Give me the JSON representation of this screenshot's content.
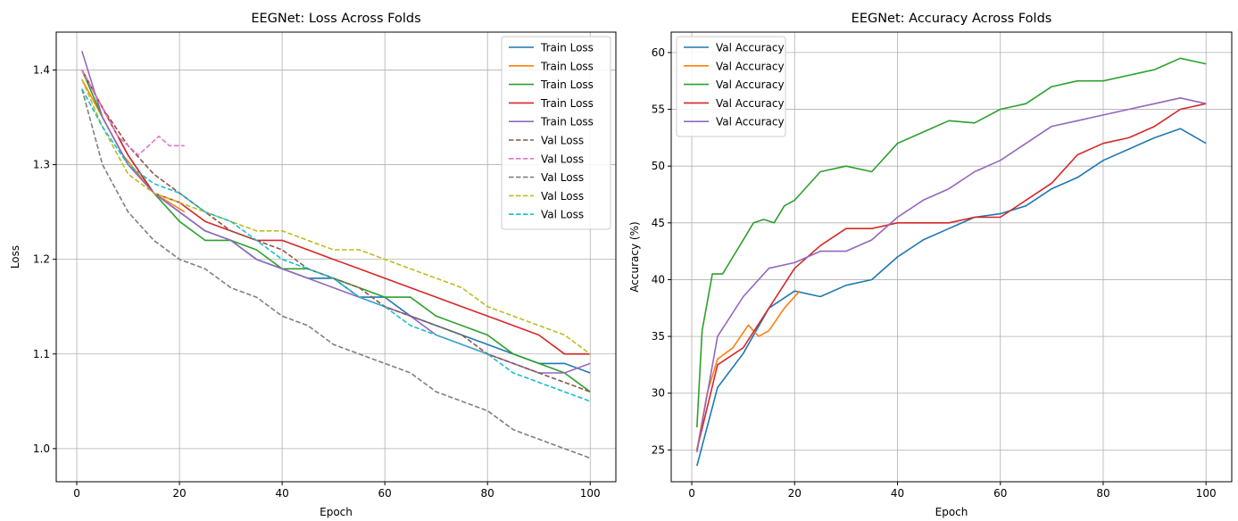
{
  "chart_data": [
    {
      "type": "line",
      "title": "EEGNet: Loss Across Folds",
      "xlabel": "Epoch",
      "ylabel": "Loss",
      "xlim": [
        -4,
        105
      ],
      "ylim": [
        0.965,
        1.44
      ],
      "xticks": [
        0,
        20,
        40,
        60,
        80,
        100
      ],
      "yticks": [
        1.0,
        1.1,
        1.2,
        1.3,
        1.4
      ],
      "ytick_format": 1,
      "grid": true,
      "legend_position": "top-right",
      "series": [
        {
          "name": "Train Loss",
          "color": "#1f77b4",
          "dash": "solid",
          "x": [
            1,
            5,
            10,
            15,
            20,
            25,
            30,
            35,
            40,
            45,
            50,
            55,
            60,
            65,
            70,
            75,
            80,
            85,
            90,
            95,
            100
          ],
          "y": [
            1.4,
            1.36,
            1.31,
            1.27,
            1.25,
            1.23,
            1.22,
            1.2,
            1.19,
            1.18,
            1.18,
            1.16,
            1.16,
            1.14,
            1.13,
            1.12,
            1.11,
            1.1,
            1.09,
            1.09,
            1.08
          ]
        },
        {
          "name": "Train Loss",
          "color": "#ff7f0e",
          "dash": "solid",
          "x": [
            1,
            3,
            6,
            9,
            12,
            15,
            18,
            21
          ],
          "y": [
            1.39,
            1.37,
            1.34,
            1.31,
            1.29,
            1.27,
            1.26,
            1.25
          ]
        },
        {
          "name": "Train Loss",
          "color": "#2ca02c",
          "dash": "solid",
          "x": [
            1,
            5,
            10,
            15,
            20,
            25,
            30,
            35,
            40,
            45,
            50,
            55,
            60,
            65,
            70,
            75,
            80,
            85,
            90,
            95,
            100
          ],
          "y": [
            1.4,
            1.35,
            1.3,
            1.27,
            1.24,
            1.22,
            1.22,
            1.21,
            1.19,
            1.19,
            1.18,
            1.17,
            1.16,
            1.16,
            1.14,
            1.13,
            1.12,
            1.1,
            1.09,
            1.08,
            1.06
          ]
        },
        {
          "name": "Train Loss",
          "color": "#d62728",
          "dash": "solid",
          "x": [
            1,
            5,
            10,
            15,
            20,
            25,
            30,
            35,
            40,
            45,
            50,
            55,
            60,
            65,
            70,
            75,
            80,
            85,
            90,
            95,
            100
          ],
          "y": [
            1.4,
            1.36,
            1.31,
            1.27,
            1.26,
            1.24,
            1.23,
            1.22,
            1.22,
            1.21,
            1.2,
            1.19,
            1.18,
            1.17,
            1.16,
            1.15,
            1.14,
            1.13,
            1.12,
            1.1,
            1.1
          ]
        },
        {
          "name": "Train Loss",
          "color": "#9467bd",
          "dash": "solid",
          "x": [
            1,
            5,
            10,
            15,
            20,
            25,
            30,
            35,
            40,
            45,
            50,
            55,
            60,
            65,
            70,
            75,
            80,
            85,
            90,
            95,
            100
          ],
          "y": [
            1.42,
            1.35,
            1.3,
            1.27,
            1.25,
            1.23,
            1.22,
            1.2,
            1.19,
            1.18,
            1.17,
            1.16,
            1.15,
            1.14,
            1.12,
            1.11,
            1.1,
            1.09,
            1.08,
            1.08,
            1.09
          ]
        },
        {
          "name": "Val Loss",
          "color": "#8c564b",
          "dash": "dashed",
          "x": [
            1,
            5,
            10,
            15,
            20,
            25,
            30,
            35,
            40,
            45,
            50,
            55,
            60,
            65,
            70,
            75,
            80,
            85,
            90,
            95,
            100
          ],
          "y": [
            1.4,
            1.36,
            1.32,
            1.29,
            1.27,
            1.25,
            1.23,
            1.22,
            1.21,
            1.19,
            1.18,
            1.17,
            1.15,
            1.14,
            1.13,
            1.12,
            1.1,
            1.09,
            1.08,
            1.07,
            1.06
          ]
        },
        {
          "name": "Val Loss",
          "color": "#e377c2",
          "dash": "dashed",
          "x": [
            1,
            4,
            8,
            12,
            16,
            18,
            21
          ],
          "y": [
            1.4,
            1.37,
            1.33,
            1.31,
            1.33,
            1.32,
            1.32
          ]
        },
        {
          "name": "Val Loss",
          "color": "#7f7f7f",
          "dash": "dashed",
          "x": [
            1,
            5,
            10,
            15,
            20,
            25,
            30,
            35,
            40,
            45,
            50,
            55,
            60,
            65,
            70,
            75,
            80,
            85,
            90,
            95,
            100
          ],
          "y": [
            1.38,
            1.3,
            1.25,
            1.22,
            1.2,
            1.19,
            1.17,
            1.16,
            1.14,
            1.13,
            1.11,
            1.1,
            1.09,
            1.08,
            1.06,
            1.05,
            1.04,
            1.02,
            1.01,
            1.0,
            0.99
          ]
        },
        {
          "name": "Val Loss",
          "color": "#bcbd22",
          "dash": "dashed",
          "x": [
            1,
            5,
            10,
            15,
            20,
            25,
            30,
            35,
            40,
            45,
            50,
            55,
            60,
            65,
            70,
            75,
            80,
            85,
            90,
            95,
            100
          ],
          "y": [
            1.39,
            1.34,
            1.29,
            1.27,
            1.26,
            1.25,
            1.24,
            1.23,
            1.23,
            1.22,
            1.21,
            1.21,
            1.2,
            1.19,
            1.18,
            1.17,
            1.15,
            1.14,
            1.13,
            1.12,
            1.1
          ]
        },
        {
          "name": "Val Loss",
          "color": "#17becf",
          "dash": "dashed",
          "x": [
            1,
            5,
            10,
            15,
            20,
            25,
            30,
            35,
            40,
            45,
            50,
            55,
            60,
            65,
            70,
            75,
            80,
            85,
            90,
            95,
            100
          ],
          "y": [
            1.38,
            1.34,
            1.3,
            1.28,
            1.27,
            1.25,
            1.24,
            1.22,
            1.2,
            1.19,
            1.18,
            1.16,
            1.15,
            1.13,
            1.12,
            1.11,
            1.1,
            1.08,
            1.07,
            1.06,
            1.05
          ]
        }
      ]
    },
    {
      "type": "line",
      "title": "EEGNet: Accuracy Across Folds",
      "xlabel": "Epoch",
      "ylabel": "Accuracy (%)",
      "xlim": [
        -4,
        105
      ],
      "ylim": [
        22.2,
        61.8
      ],
      "xticks": [
        0,
        20,
        40,
        60,
        80,
        100
      ],
      "yticks": [
        25,
        30,
        35,
        40,
        45,
        50,
        55,
        60
      ],
      "ytick_format": 0,
      "grid": true,
      "legend_position": "top-left",
      "series": [
        {
          "name": "Val Accuracy",
          "color": "#1f77b4",
          "dash": "solid",
          "x": [
            1,
            5,
            10,
            15,
            20,
            25,
            30,
            35,
            40,
            45,
            50,
            55,
            60,
            65,
            70,
            75,
            80,
            85,
            90,
            95,
            100
          ],
          "y": [
            23.6,
            30.5,
            33.5,
            37.5,
            39.0,
            38.5,
            39.5,
            40.0,
            42.0,
            43.5,
            44.5,
            45.5,
            45.8,
            46.5,
            48.0,
            49.0,
            50.5,
            51.5,
            52.5,
            53.3,
            52.0
          ]
        },
        {
          "name": "Val Accuracy",
          "color": "#ff7f0e",
          "dash": "solid",
          "x": [
            1,
            3,
            5,
            8,
            11,
            13,
            15,
            18,
            21
          ],
          "y": [
            25.0,
            30.0,
            33.0,
            34.0,
            36.0,
            35.0,
            35.5,
            37.5,
            39.0
          ]
        },
        {
          "name": "Val Accuracy",
          "color": "#2ca02c",
          "dash": "solid",
          "x": [
            1,
            2,
            4,
            6,
            8,
            10,
            12,
            14,
            16,
            18,
            20,
            25,
            30,
            35,
            40,
            45,
            50,
            55,
            60,
            65,
            70,
            75,
            80,
            85,
            90,
            95,
            100
          ],
          "y": [
            27.0,
            35.5,
            40.5,
            40.5,
            42.0,
            43.5,
            45.0,
            45.3,
            45.0,
            46.5,
            47.0,
            49.5,
            50.0,
            49.5,
            52.0,
            53.0,
            54.0,
            53.8,
            55.0,
            55.5,
            57.0,
            57.5,
            57.5,
            58.0,
            58.5,
            59.5,
            59.0
          ]
        },
        {
          "name": "Val Accuracy",
          "color": "#d62728",
          "dash": "solid",
          "x": [
            1,
            5,
            10,
            15,
            20,
            25,
            30,
            35,
            40,
            45,
            50,
            55,
            60,
            65,
            70,
            75,
            80,
            85,
            90,
            95,
            100
          ],
          "y": [
            25.0,
            32.5,
            34.0,
            37.5,
            41.0,
            43.0,
            44.5,
            44.5,
            45.0,
            45.0,
            45.0,
            45.5,
            45.5,
            47.0,
            48.5,
            51.0,
            52.0,
            52.5,
            53.5,
            55.0,
            55.5
          ]
        },
        {
          "name": "Val Accuracy",
          "color": "#9467bd",
          "dash": "solid",
          "x": [
            1,
            5,
            10,
            15,
            20,
            25,
            30,
            35,
            40,
            45,
            50,
            55,
            60,
            65,
            70,
            75,
            80,
            85,
            90,
            95,
            100
          ],
          "y": [
            24.8,
            35.0,
            38.5,
            41.0,
            41.5,
            42.5,
            42.5,
            43.5,
            45.5,
            47.0,
            48.0,
            49.5,
            50.5,
            52.0,
            53.5,
            54.0,
            54.5,
            55.0,
            55.5,
            56.0,
            55.5
          ]
        }
      ]
    }
  ]
}
